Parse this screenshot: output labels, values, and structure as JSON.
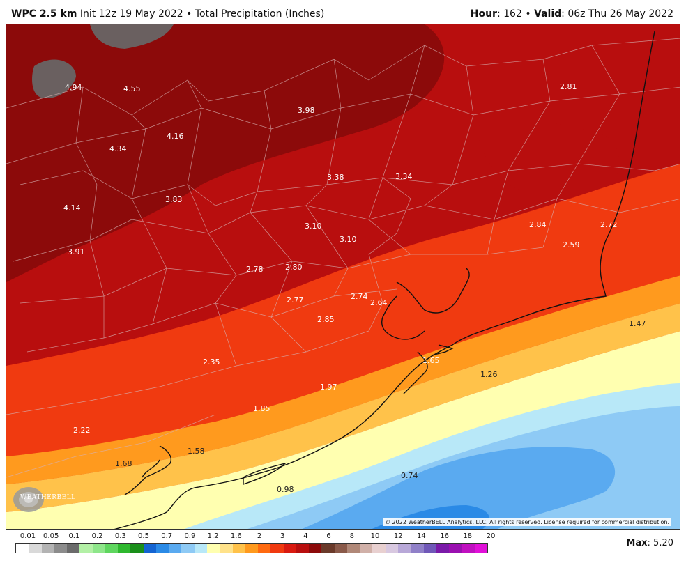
{
  "header": {
    "model": "WPC 2.5 km",
    "init": "Init 12z 19 May 2022",
    "separator": "•",
    "product": "Total Precipitation (Inches)",
    "hour_label": "Hour",
    "hour_value": ": 162",
    "valid_label": "Valid",
    "valid_value": ": 06z Thu 26 May 2022"
  },
  "map": {
    "values": {
      "v1": "4.94",
      "v2": "4.55",
      "v3": "3.98",
      "v4": "2.81",
      "v5": "4.16",
      "v6": "4.34",
      "v7": "3.38",
      "v8": "3.34",
      "v9": "4.14",
      "v10": "3.83",
      "v11": "3.10",
      "v12": "2.84",
      "v13": "2.72",
      "v14": "3.10",
      "v15": "2.59",
      "v16": "3.91",
      "v17": "2.78",
      "v18": "2.80",
      "v19": "2.74",
      "v20": "2.77",
      "v21": "2.64",
      "v22": "2.85",
      "v23": "1.47",
      "v24": "1.65",
      "v25": "2.35",
      "v26": "1.26",
      "v27": "1.97",
      "v28": "1.85",
      "v29": "2.22",
      "v30": "1.58",
      "v31": "1.68",
      "v32": "0.74",
      "v33": "0.98"
    },
    "logo_text": "WEATHERBELL",
    "copyright": "© 2022 WeatherBELL Analytics, LLC. All rights reserved. License required for commercial distribution."
  },
  "legend": {
    "ticks": [
      "0.01",
      "0.05",
      "0.1",
      "0.2",
      "0.3",
      "0.5",
      "0.7",
      "0.9",
      "1.2",
      "1.6",
      "2",
      "3",
      "4",
      "6",
      "8",
      "10",
      "12",
      "14",
      "16",
      "18",
      "20"
    ],
    "colors": [
      "#ffffff",
      "#d9d9d9",
      "#b3b3b3",
      "#8c8c8c",
      "#6b6b6b",
      "#b3f0a6",
      "#8ee68a",
      "#5fd65f",
      "#2fb82f",
      "#1a8f1a",
      "#1464d2",
      "#2a8ae6",
      "#5aaaf0",
      "#8ecaf5",
      "#b8e8f8",
      "#ffffb0",
      "#ffe28a",
      "#ffc24a",
      "#ff9a1e",
      "#ff6a10",
      "#f03a10",
      "#d91a10",
      "#b80e0e",
      "#8c0a0a",
      "#6a3a2a",
      "#8a5a4a",
      "#b08878",
      "#d0b0a8",
      "#e8d0d0",
      "#d8c8e0",
      "#b8a8d8",
      "#9080c8",
      "#7058b8",
      "#7a1aa8",
      "#9a10b0",
      "#c010c0",
      "#e010d8"
    ],
    "max_label": "Max",
    "max_value": ": 5.20"
  }
}
